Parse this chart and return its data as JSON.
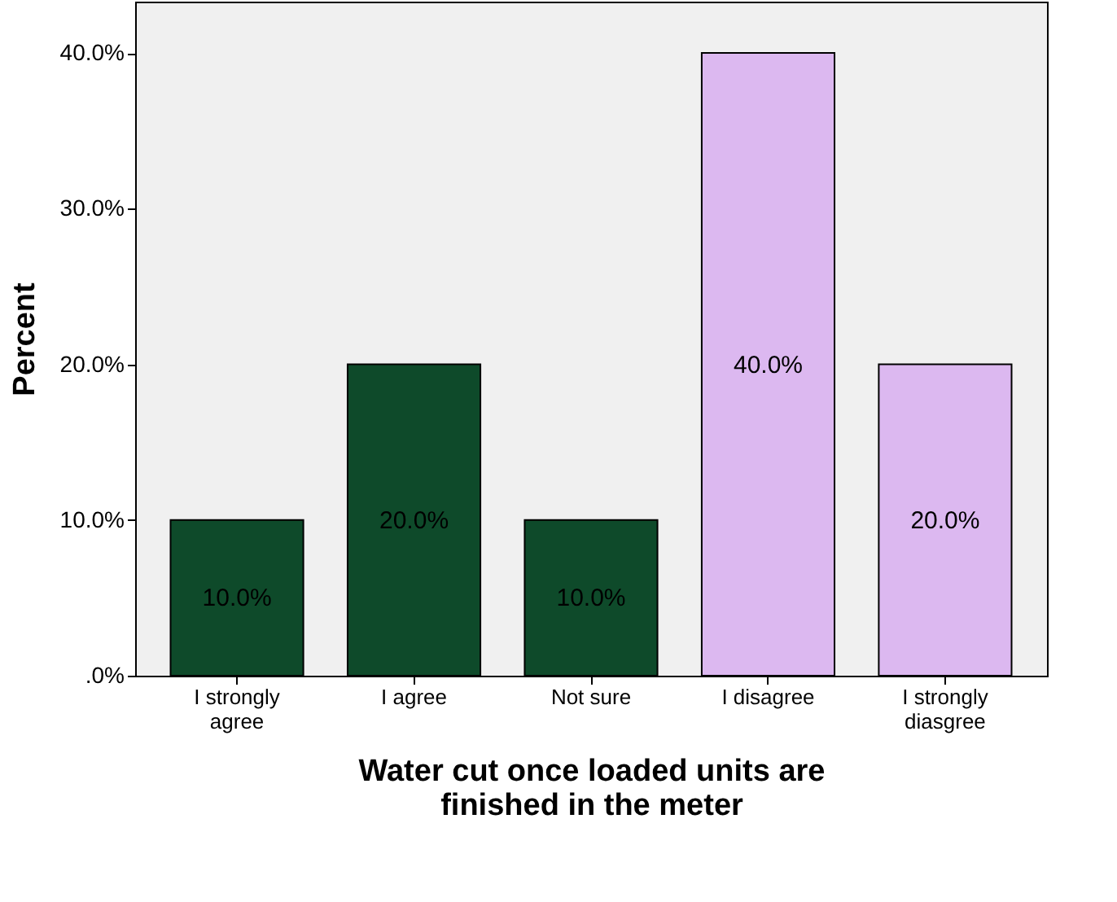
{
  "chart_data": {
    "type": "bar",
    "xlabel": "Water cut once loaded units are finished in the meter",
    "ylabel": "Percent",
    "categories": [
      "I  strongly agree",
      "I agree",
      "Not sure",
      "I disagree",
      "I strongly diasgree"
    ],
    "values": [
      10,
      20,
      10,
      40,
      20
    ],
    "colors": [
      "#0e4a2a",
      "#0e4a2a",
      "#0e4a2a",
      "#dcb8f0",
      "#dcb8f0"
    ],
    "value_labels": [
      "10.0%",
      "20.0%",
      "10.0%",
      "40.0%",
      "20.0%"
    ],
    "ylim": [
      0,
      43.3
    ],
    "yticks": [
      {
        "value": 0,
        "label": ".0%"
      },
      {
        "value": 10,
        "label": "10.0%"
      },
      {
        "value": 20,
        "label": "20.0%"
      },
      {
        "value": 30,
        "label": "30.0%"
      },
      {
        "value": 40,
        "label": "40.0%"
      }
    ],
    "grid": false
  }
}
